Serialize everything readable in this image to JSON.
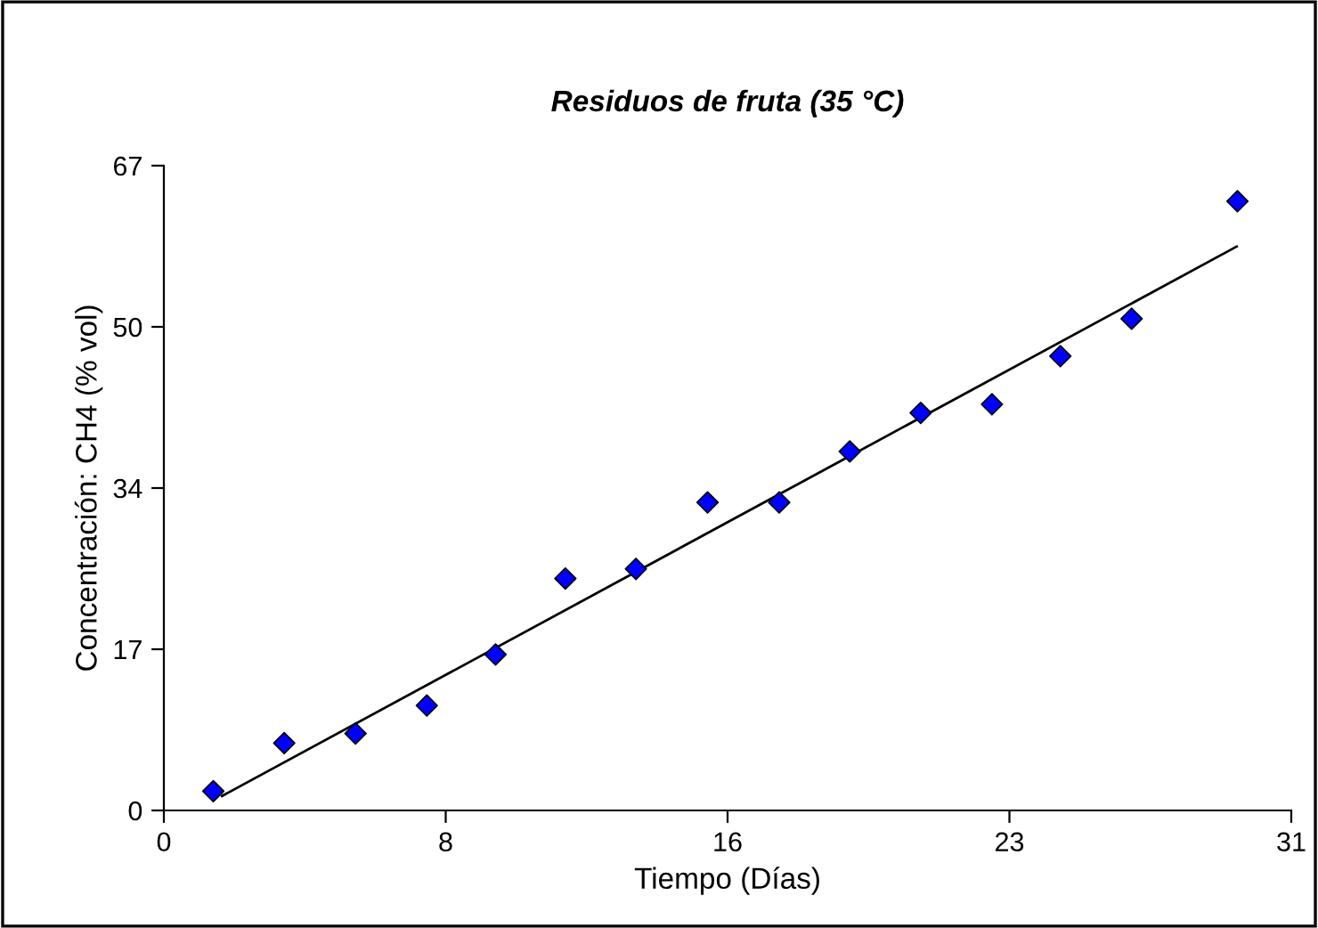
{
  "chart_data": {
    "type": "scatter",
    "title": "Residuos de fruta (35 °C)",
    "xlabel": "Tiempo (Días)",
    "ylabel": "Concentración: CH4 (% vol)",
    "xlim": [
      0,
      31
    ],
    "xticks": [
      0,
      {
        "value": 7.75,
        "label": "8"
      },
      {
        "value": 15.5,
        "label": "16"
      },
      {
        "value": 23.25,
        "label": "23"
      },
      31
    ],
    "ylim": [
      0,
      67
    ],
    "yticks": [
      0,
      {
        "value": 16.75,
        "label": "17"
      },
      {
        "value": 33.5,
        "label": "34"
      },
      {
        "value": 50.25,
        "label": "50"
      },
      67
    ],
    "grid": false,
    "legend": false,
    "series": [
      {
        "marker": "diamond",
        "color": "#0000ff",
        "x": [
          1.36,
          3.31,
          5.27,
          7.23,
          9.12,
          11.04,
          12.98,
          14.95,
          16.92,
          18.86,
          20.81,
          22.77,
          24.65,
          26.61,
          29.52
        ],
        "values": [
          2.0,
          7.0,
          8.0,
          10.9,
          16.2,
          24.1,
          25.1,
          32.0,
          32.0,
          37.3,
          41.3,
          42.2,
          47.2,
          51.1,
          63.3
        ]
      },
      {
        "type": "line",
        "color": "#000000",
        "line_style": "solid",
        "x": [
          1.6,
          29.5
        ],
        "values": [
          1.5,
          58.6
        ]
      }
    ]
  }
}
